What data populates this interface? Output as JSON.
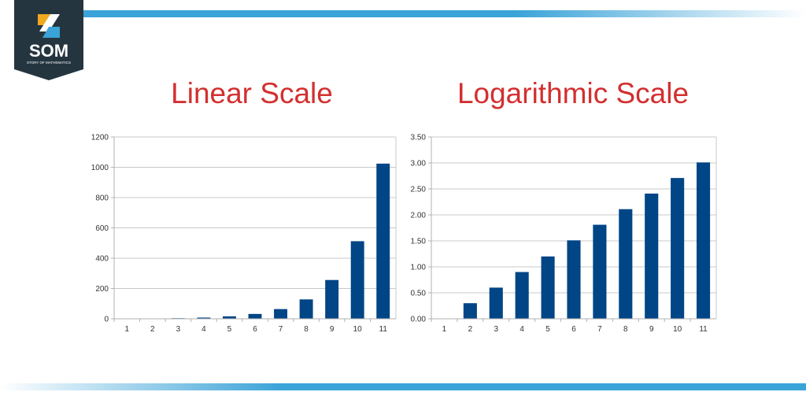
{
  "logo": {
    "text": "SOM",
    "subtext": "STORY OF MATHEMATICS"
  },
  "colors": {
    "bar": "#004586",
    "title": "#d32f2f",
    "accent": "#3aa3d8",
    "logo_bg": "#253540"
  },
  "chart_data": [
    {
      "type": "bar",
      "title": "Linear Scale",
      "categories": [
        "1",
        "2",
        "3",
        "4",
        "5",
        "6",
        "7",
        "8",
        "9",
        "10",
        "11"
      ],
      "values": [
        1,
        2,
        4,
        8,
        16,
        32,
        64,
        128,
        256,
        512,
        1024
      ],
      "ylim": [
        0,
        1200
      ],
      "yticks": [
        "0",
        "200",
        "400",
        "600",
        "800",
        "1000",
        "1200"
      ],
      "grid": true
    },
    {
      "type": "bar",
      "title": "Logarithmic Scale",
      "categories": [
        "1",
        "2",
        "3",
        "4",
        "5",
        "6",
        "7",
        "8",
        "9",
        "10",
        "11"
      ],
      "values": [
        0,
        0.3,
        0.6,
        0.9,
        1.2,
        1.51,
        1.81,
        2.11,
        2.41,
        2.71,
        3.01
      ],
      "ylim": [
        0,
        3.5
      ],
      "yticks": [
        "0.00",
        "0.50",
        "1.00",
        "1.50",
        "2.00",
        "2.50",
        "3.00",
        "3.50"
      ],
      "grid": true
    }
  ]
}
